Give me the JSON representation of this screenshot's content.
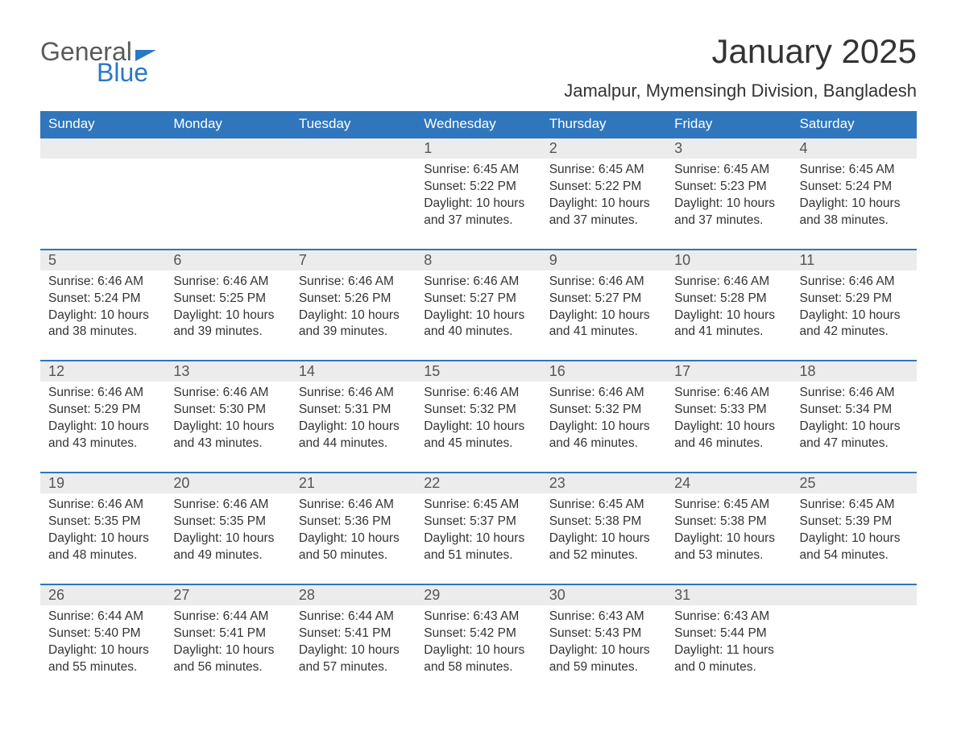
{
  "logo": {
    "text1": "General",
    "text2": "Blue"
  },
  "title": "January 2025",
  "location": "Jamalpur, Mymensingh Division, Bangladesh",
  "colors": {
    "header_bg": "#2f76bd",
    "header_text": "#ffffff",
    "daynum_bg": "#ececec",
    "border_top": "#2f76bd",
    "body_text": "#333333",
    "logo_gray": "#5a5a5a",
    "logo_blue": "#2b78c5",
    "page_bg": "#ffffff"
  },
  "weekdays": [
    "Sunday",
    "Monday",
    "Tuesday",
    "Wednesday",
    "Thursday",
    "Friday",
    "Saturday"
  ],
  "weeks": [
    [
      null,
      null,
      null,
      {
        "n": "1",
        "sr": "6:45 AM",
        "ss": "5:22 PM",
        "dl": "10 hours and 37 minutes."
      },
      {
        "n": "2",
        "sr": "6:45 AM",
        "ss": "5:22 PM",
        "dl": "10 hours and 37 minutes."
      },
      {
        "n": "3",
        "sr": "6:45 AM",
        "ss": "5:23 PM",
        "dl": "10 hours and 37 minutes."
      },
      {
        "n": "4",
        "sr": "6:45 AM",
        "ss": "5:24 PM",
        "dl": "10 hours and 38 minutes."
      }
    ],
    [
      {
        "n": "5",
        "sr": "6:46 AM",
        "ss": "5:24 PM",
        "dl": "10 hours and 38 minutes."
      },
      {
        "n": "6",
        "sr": "6:46 AM",
        "ss": "5:25 PM",
        "dl": "10 hours and 39 minutes."
      },
      {
        "n": "7",
        "sr": "6:46 AM",
        "ss": "5:26 PM",
        "dl": "10 hours and 39 minutes."
      },
      {
        "n": "8",
        "sr": "6:46 AM",
        "ss": "5:27 PM",
        "dl": "10 hours and 40 minutes."
      },
      {
        "n": "9",
        "sr": "6:46 AM",
        "ss": "5:27 PM",
        "dl": "10 hours and 41 minutes."
      },
      {
        "n": "10",
        "sr": "6:46 AM",
        "ss": "5:28 PM",
        "dl": "10 hours and 41 minutes."
      },
      {
        "n": "11",
        "sr": "6:46 AM",
        "ss": "5:29 PM",
        "dl": "10 hours and 42 minutes."
      }
    ],
    [
      {
        "n": "12",
        "sr": "6:46 AM",
        "ss": "5:29 PM",
        "dl": "10 hours and 43 minutes."
      },
      {
        "n": "13",
        "sr": "6:46 AM",
        "ss": "5:30 PM",
        "dl": "10 hours and 43 minutes."
      },
      {
        "n": "14",
        "sr": "6:46 AM",
        "ss": "5:31 PM",
        "dl": "10 hours and 44 minutes."
      },
      {
        "n": "15",
        "sr": "6:46 AM",
        "ss": "5:32 PM",
        "dl": "10 hours and 45 minutes."
      },
      {
        "n": "16",
        "sr": "6:46 AM",
        "ss": "5:32 PM",
        "dl": "10 hours and 46 minutes."
      },
      {
        "n": "17",
        "sr": "6:46 AM",
        "ss": "5:33 PM",
        "dl": "10 hours and 46 minutes."
      },
      {
        "n": "18",
        "sr": "6:46 AM",
        "ss": "5:34 PM",
        "dl": "10 hours and 47 minutes."
      }
    ],
    [
      {
        "n": "19",
        "sr": "6:46 AM",
        "ss": "5:35 PM",
        "dl": "10 hours and 48 minutes."
      },
      {
        "n": "20",
        "sr": "6:46 AM",
        "ss": "5:35 PM",
        "dl": "10 hours and 49 minutes."
      },
      {
        "n": "21",
        "sr": "6:46 AM",
        "ss": "5:36 PM",
        "dl": "10 hours and 50 minutes."
      },
      {
        "n": "22",
        "sr": "6:45 AM",
        "ss": "5:37 PM",
        "dl": "10 hours and 51 minutes."
      },
      {
        "n": "23",
        "sr": "6:45 AM",
        "ss": "5:38 PM",
        "dl": "10 hours and 52 minutes."
      },
      {
        "n": "24",
        "sr": "6:45 AM",
        "ss": "5:38 PM",
        "dl": "10 hours and 53 minutes."
      },
      {
        "n": "25",
        "sr": "6:45 AM",
        "ss": "5:39 PM",
        "dl": "10 hours and 54 minutes."
      }
    ],
    [
      {
        "n": "26",
        "sr": "6:44 AM",
        "ss": "5:40 PM",
        "dl": "10 hours and 55 minutes."
      },
      {
        "n": "27",
        "sr": "6:44 AM",
        "ss": "5:41 PM",
        "dl": "10 hours and 56 minutes."
      },
      {
        "n": "28",
        "sr": "6:44 AM",
        "ss": "5:41 PM",
        "dl": "10 hours and 57 minutes."
      },
      {
        "n": "29",
        "sr": "6:43 AM",
        "ss": "5:42 PM",
        "dl": "10 hours and 58 minutes."
      },
      {
        "n": "30",
        "sr": "6:43 AM",
        "ss": "5:43 PM",
        "dl": "10 hours and 59 minutes."
      },
      {
        "n": "31",
        "sr": "6:43 AM",
        "ss": "5:44 PM",
        "dl": "11 hours and 0 minutes."
      },
      null
    ]
  ],
  "labels": {
    "sunrise": "Sunrise: ",
    "sunset": "Sunset: ",
    "daylight": "Daylight: "
  }
}
